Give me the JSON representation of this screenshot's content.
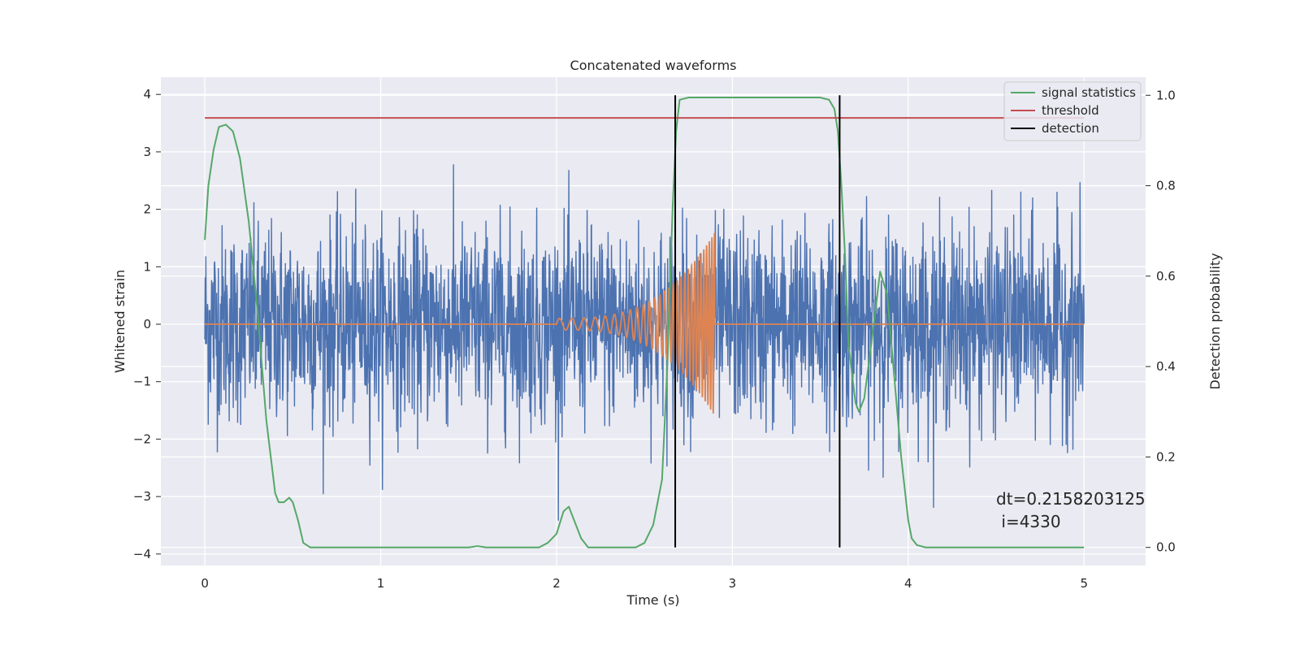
{
  "chart_data": {
    "type": "line",
    "title": "Concatenated waveforms",
    "xlabel": "Time (s)",
    "ylabel": "Whitened strain",
    "y2label": "Detection probability",
    "xlim": [
      -0.25,
      5.35
    ],
    "ylim": [
      -4.2,
      4.3
    ],
    "y2lim": [
      -0.04,
      1.04
    ],
    "x_ticks": [
      0,
      1,
      2,
      3,
      4,
      5
    ],
    "y_ticks": [
      -4,
      -3,
      -2,
      -1,
      0,
      1,
      2,
      3,
      4
    ],
    "y2_ticks": [
      0.0,
      0.2,
      0.4,
      0.6,
      0.8,
      1.0
    ],
    "x_tick_labels": [
      "0",
      "1",
      "2",
      "3",
      "4",
      "5"
    ],
    "y_tick_labels": [
      "−4",
      "−3",
      "−2",
      "−1",
      "0",
      "1",
      "2",
      "3",
      "4"
    ],
    "y2_tick_labels": [
      "0.0",
      "0.2",
      "0.4",
      "0.6",
      "0.8",
      "1.0"
    ],
    "grid": true,
    "legend_position": "top-right",
    "series": [
      {
        "name": "",
        "axis": "left",
        "color": "#4c72b0",
        "kind": "noise",
        "x_range": [
          0,
          5
        ],
        "samples": 2600,
        "std": 0.85,
        "clip": [
          -3.9,
          3.9
        ]
      },
      {
        "name": "",
        "axis": "left",
        "color": "#dd8452",
        "kind": "chirp",
        "x_range": [
          0,
          5
        ],
        "chirp_start": 2.0,
        "chirp_end": 2.9,
        "amplitude_start": 0.1,
        "amplitude_end": 1.6,
        "freq_start": 14,
        "freq_end": 70
      },
      {
        "name": "signal statistics",
        "axis": "right",
        "color": "#55a868",
        "x": [
          0.0,
          0.02,
          0.05,
          0.08,
          0.12,
          0.16,
          0.2,
          0.25,
          0.3,
          0.35,
          0.4,
          0.42,
          0.45,
          0.48,
          0.5,
          0.53,
          0.56,
          0.6,
          1.0,
          1.5,
          1.55,
          1.6,
          1.7,
          1.9,
          1.95,
          2.0,
          2.04,
          2.07,
          2.1,
          2.14,
          2.18,
          2.2,
          2.3,
          2.45,
          2.5,
          2.55,
          2.6,
          2.63,
          2.66,
          2.68,
          2.7,
          2.75,
          3.0,
          3.5,
          3.55,
          3.58,
          3.6,
          3.62,
          3.64,
          3.66,
          3.7,
          3.72,
          3.75,
          3.8,
          3.84,
          3.88,
          3.92,
          3.96,
          4.0,
          4.02,
          4.05,
          4.1,
          4.5,
          5.0
        ],
        "values": [
          0.68,
          0.8,
          0.88,
          0.93,
          0.935,
          0.92,
          0.86,
          0.72,
          0.52,
          0.28,
          0.12,
          0.1,
          0.1,
          0.11,
          0.1,
          0.06,
          0.01,
          0.0,
          0.0,
          0.0,
          0.003,
          0.0,
          0.0,
          0.0,
          0.01,
          0.03,
          0.08,
          0.09,
          0.06,
          0.02,
          0.0,
          0.0,
          0.0,
          0.0,
          0.01,
          0.05,
          0.15,
          0.4,
          0.75,
          0.92,
          0.99,
          0.995,
          0.995,
          0.995,
          0.99,
          0.97,
          0.92,
          0.8,
          0.65,
          0.45,
          0.32,
          0.3,
          0.33,
          0.48,
          0.61,
          0.56,
          0.38,
          0.2,
          0.06,
          0.02,
          0.005,
          0.0,
          0.0,
          0.0
        ]
      },
      {
        "name": "threshold",
        "axis": "right",
        "color": "#c44e52",
        "x": [
          0,
          5
        ],
        "values": [
          0.95,
          0.95
        ]
      },
      {
        "name": "detection",
        "axis": "right",
        "color": "#000000",
        "kind": "vlines",
        "x": [
          2.675,
          3.61
        ],
        "y_from": 0.0,
        "y_to": 1.0
      }
    ],
    "annotation": {
      "line1": "dt=0.2158203125",
      "line2": " i=4330",
      "x": 4.5,
      "y": 0.095
    }
  }
}
